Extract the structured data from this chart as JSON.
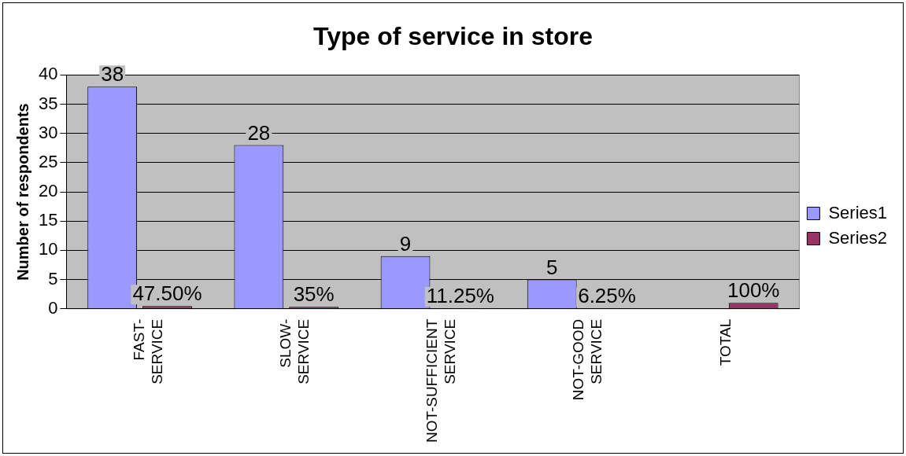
{
  "chart_data": {
    "type": "bar",
    "title": "Type of service in store",
    "ylabel": "Number of respondents",
    "categories": [
      "FAST-SERVICE",
      "SLOW-SERVICE",
      "NOT-SUFFICIENT SERVICE",
      "NOT-GOOD SERVICE",
      "TOTAL"
    ],
    "series": [
      {
        "name": "Series1",
        "color": "#9999ff",
        "values": [
          38,
          28,
          9,
          5,
          null
        ],
        "value_labels": [
          "38",
          "28",
          "9",
          "5",
          null
        ]
      },
      {
        "name": "Series2",
        "color": "#993366",
        "values": [
          0.475,
          0.35,
          0.1125,
          0.0625,
          1
        ],
        "value_labels": [
          "47.50%",
          "35%",
          "11.25%",
          "6.25%",
          "100%"
        ]
      }
    ],
    "ylim": [
      0,
      40
    ],
    "yticks": [
      0,
      5,
      10,
      15,
      20,
      25,
      30,
      35,
      40
    ],
    "grid": "y",
    "legend": "right"
  }
}
